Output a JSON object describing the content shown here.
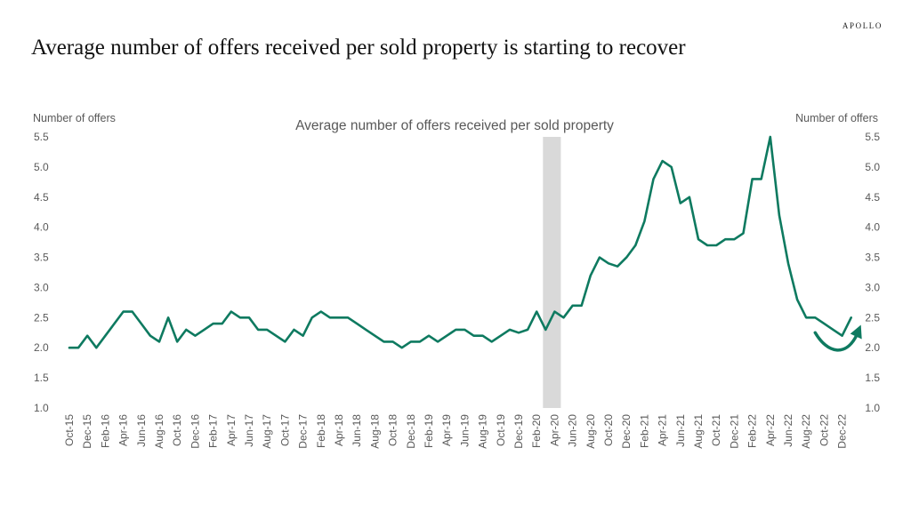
{
  "brand": "APOLLO",
  "page_title": "Average number of  offers received per sold property is starting to recover",
  "colors": {
    "line": "#0e7a60",
    "shade": "#d9d9d9",
    "text": "#595959"
  },
  "chart_data": {
    "type": "line",
    "title": "Average number of offers received per sold property",
    "ylabel_left": "Number of offers",
    "ylabel_right": "Number of offers",
    "ylim": [
      1.0,
      5.5
    ],
    "yticks": [
      "1.0",
      "1.5",
      "2.0",
      "2.5",
      "3.0",
      "3.5",
      "4.0",
      "4.5",
      "5.0",
      "5.5"
    ],
    "grid": false,
    "x_tick_labels": [
      "Oct-15",
      "Dec-15",
      "Feb-16",
      "Apr-16",
      "Jun-16",
      "Aug-16",
      "Oct-16",
      "Dec-16",
      "Feb-17",
      "Apr-17",
      "Jun-17",
      "Aug-17",
      "Oct-17",
      "Dec-17",
      "Feb-18",
      "Apr-18",
      "Jun-18",
      "Aug-18",
      "Oct-18",
      "Dec-18",
      "Feb-19",
      "Apr-19",
      "Jun-19",
      "Aug-19",
      "Oct-19",
      "Dec-19",
      "Feb-20",
      "Apr-20",
      "Jun-20",
      "Aug-20",
      "Oct-20",
      "Dec-20",
      "Feb-21",
      "Apr-21",
      "Jun-21",
      "Aug-21",
      "Oct-21",
      "Dec-21",
      "Feb-22",
      "Apr-22",
      "Jun-22",
      "Aug-22",
      "Oct-22",
      "Dec-22"
    ],
    "x": [
      "Oct-15",
      "Nov-15",
      "Dec-15",
      "Jan-16",
      "Feb-16",
      "Mar-16",
      "Apr-16",
      "May-16",
      "Jun-16",
      "Jul-16",
      "Aug-16",
      "Sep-16",
      "Oct-16",
      "Nov-16",
      "Dec-16",
      "Jan-17",
      "Feb-17",
      "Mar-17",
      "Apr-17",
      "May-17",
      "Jun-17",
      "Jul-17",
      "Aug-17",
      "Sep-17",
      "Oct-17",
      "Nov-17",
      "Dec-17",
      "Jan-18",
      "Feb-18",
      "Mar-18",
      "Apr-18",
      "May-18",
      "Jun-18",
      "Jul-18",
      "Aug-18",
      "Sep-18",
      "Oct-18",
      "Nov-18",
      "Dec-18",
      "Jan-19",
      "Feb-19",
      "Mar-19",
      "Apr-19",
      "May-19",
      "Jun-19",
      "Jul-19",
      "Aug-19",
      "Sep-19",
      "Oct-19",
      "Nov-19",
      "Dec-19",
      "Jan-20",
      "Feb-20",
      "Mar-20",
      "Apr-20",
      "May-20",
      "Jun-20",
      "Jul-20",
      "Aug-20",
      "Sep-20",
      "Oct-20",
      "Nov-20",
      "Dec-20",
      "Jan-21",
      "Feb-21",
      "Mar-21",
      "Apr-21",
      "May-21",
      "Jun-21",
      "Jul-21",
      "Aug-21",
      "Sep-21",
      "Oct-21",
      "Nov-21",
      "Dec-21",
      "Jan-22",
      "Feb-22",
      "Mar-22",
      "Apr-22",
      "May-22",
      "Jun-22",
      "Jul-22",
      "Aug-22",
      "Sep-22",
      "Oct-22",
      "Nov-22",
      "Dec-22",
      "Jan-23"
    ],
    "series": [
      {
        "values": [
          2.0,
          2.0,
          2.2,
          2.0,
          2.2,
          2.4,
          2.6,
          2.6,
          2.4,
          2.2,
          2.1,
          2.5,
          2.1,
          2.3,
          2.2,
          2.3,
          2.4,
          2.4,
          2.6,
          2.5,
          2.5,
          2.3,
          2.3,
          2.2,
          2.1,
          2.3,
          2.2,
          2.5,
          2.6,
          2.5,
          2.5,
          2.5,
          2.4,
          2.3,
          2.2,
          2.1,
          2.1,
          2.0,
          2.1,
          2.1,
          2.2,
          2.1,
          2.2,
          2.3,
          2.3,
          2.2,
          2.2,
          2.1,
          2.2,
          2.3,
          2.25,
          2.3,
          2.6,
          2.3,
          2.6,
          2.5,
          2.7,
          2.7,
          3.2,
          3.5,
          3.4,
          3.35,
          3.5,
          3.7,
          4.1,
          4.8,
          5.1,
          5.0,
          4.4,
          4.5,
          3.8,
          3.7,
          3.7,
          3.8,
          3.8,
          3.9,
          4.8,
          4.8,
          5.5,
          4.2,
          3.4,
          2.8,
          2.5,
          2.5,
          2.4,
          2.3,
          2.2,
          2.5
        ]
      }
    ],
    "shaded_region": {
      "from": "Mar-20",
      "to": "Apr-20"
    },
    "annotation": {
      "type": "curved-arrow",
      "from": "Sep-22",
      "to": "Jan-23"
    }
  }
}
